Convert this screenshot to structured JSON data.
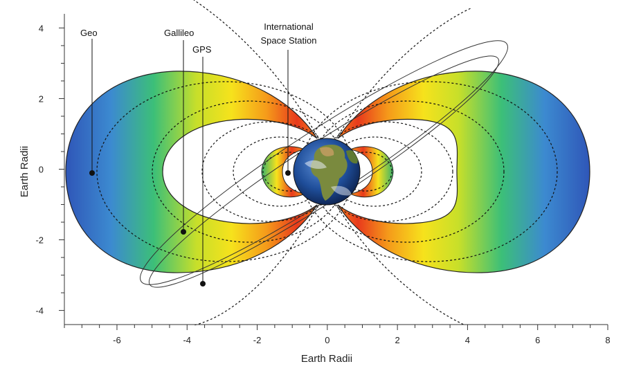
{
  "figure": {
    "xlabel": "Earth Radii",
    "ylabel": "Earth Radii",
    "x_ticks": [
      "-6",
      "-4",
      "-2",
      "0",
      "2",
      "4",
      "6",
      "8"
    ],
    "y_ticks": [
      "4",
      "2",
      "0",
      "-2",
      "-4"
    ],
    "xlim": [
      -7.5,
      8
    ],
    "ylim": [
      -4.4,
      4.4
    ],
    "callouts": {
      "geo": "Geo",
      "galileo": "Gallileo",
      "gps": "GPS",
      "iss_line1": "International",
      "iss_line2": "Space Station"
    },
    "colors": {
      "belt_outer": "#3b5fbf",
      "belt_mid": "#f7e21a",
      "belt_inner": "#e8391c",
      "earth_ocean": "#1f4e9a",
      "earth_land": "#6f8f3a"
    },
    "belts": [
      "outer radiation belt",
      "inner radiation belt"
    ]
  }
}
